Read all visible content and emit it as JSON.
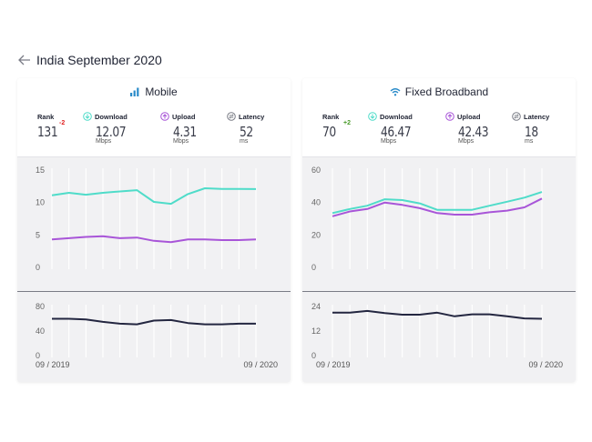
{
  "header": {
    "title": "India September 2020"
  },
  "colors": {
    "download": "#4fdcc9",
    "upload": "#a855d8",
    "latency": "#232640",
    "rank_down": "#e02020",
    "rank_up": "#4a9b2a",
    "accent": "#2a8bc9"
  },
  "panels": [
    {
      "title": "Mobile",
      "icon": "signal-bars-icon",
      "rank": {
        "label": "Rank",
        "value": "131",
        "change": "-2"
      },
      "download": {
        "label": "Download",
        "value": "12.07",
        "unit": "Mbps"
      },
      "upload": {
        "label": "Upload",
        "value": "4.31",
        "unit": "Mbps"
      },
      "latency": {
        "label": "Latency",
        "value": "52",
        "unit": "ms"
      },
      "x_start": "09 / 2019",
      "x_end": "09 / 2020"
    },
    {
      "title": "Fixed Broadband",
      "icon": "wifi-icon",
      "rank": {
        "label": "Rank",
        "value": "70",
        "change": "+2"
      },
      "download": {
        "label": "Download",
        "value": "46.47",
        "unit": "Mbps"
      },
      "upload": {
        "label": "Upload",
        "value": "42.43",
        "unit": "Mbps"
      },
      "latency": {
        "label": "Latency",
        "value": "18",
        "unit": "ms"
      },
      "x_start": "09 / 2019",
      "x_end": "09 / 2020"
    }
  ],
  "chart_data": [
    {
      "type": "line",
      "x": [
        "09/2019",
        "10/2019",
        "11/2019",
        "12/2019",
        "01/2020",
        "02/2020",
        "03/2020",
        "04/2020",
        "05/2020",
        "06/2020",
        "07/2020",
        "08/2020",
        "09/2020"
      ],
      "ylim": [
        0,
        15
      ],
      "yticks": [
        "15",
        "10",
        "5",
        "0"
      ],
      "series": [
        {
          "name": "Download",
          "values": [
            11.1,
            11.5,
            11.2,
            11.5,
            11.7,
            11.9,
            10.1,
            9.8,
            11.3,
            12.2,
            12.1,
            12.1,
            12.07
          ]
        },
        {
          "name": "Upload",
          "values": [
            4.3,
            4.5,
            4.7,
            4.8,
            4.5,
            4.6,
            4.1,
            3.9,
            4.3,
            4.3,
            4.2,
            4.2,
            4.31
          ]
        }
      ]
    },
    {
      "type": "line",
      "x": [
        "09/2019",
        "10/2019",
        "11/2019",
        "12/2019",
        "01/2020",
        "02/2020",
        "03/2020",
        "04/2020",
        "05/2020",
        "06/2020",
        "07/2020",
        "08/2020",
        "09/2020"
      ],
      "ylim": [
        0,
        80
      ],
      "yticks": [
        "80",
        "40",
        "0"
      ],
      "series": [
        {
          "name": "Latency",
          "values": [
            60,
            60,
            59,
            55,
            52,
            51,
            57,
            58,
            53,
            51,
            51,
            52,
            52
          ]
        }
      ]
    },
    {
      "type": "line",
      "x": [
        "09/2019",
        "10/2019",
        "11/2019",
        "12/2019",
        "01/2020",
        "02/2020",
        "03/2020",
        "04/2020",
        "05/2020",
        "06/2020",
        "07/2020",
        "08/2020",
        "09/2020"
      ],
      "ylim": [
        0,
        60
      ],
      "yticks": [
        "60",
        "40",
        "20",
        "0"
      ],
      "series": [
        {
          "name": "Download",
          "values": [
            33.5,
            36,
            38,
            42,
            41.5,
            39.5,
            35.5,
            35.5,
            35.5,
            38,
            40.5,
            43,
            46.47
          ]
        },
        {
          "name": "Upload",
          "values": [
            31.5,
            34.5,
            36,
            40,
            38.5,
            36.5,
            33.5,
            32.5,
            32.5,
            34,
            35,
            37,
            42.43
          ]
        }
      ]
    },
    {
      "type": "line",
      "x": [
        "09/2019",
        "10/2019",
        "11/2019",
        "12/2019",
        "01/2020",
        "02/2020",
        "03/2020",
        "04/2020",
        "05/2020",
        "06/2020",
        "07/2020",
        "08/2020",
        "09/2020"
      ],
      "ylim": [
        0,
        24
      ],
      "yticks": [
        "24",
        "12",
        "0"
      ],
      "series": [
        {
          "name": "Latency",
          "values": [
            21,
            21,
            21.8,
            20.8,
            20,
            20,
            21,
            19.2,
            20.2,
            20.2,
            19.2,
            18.2,
            18
          ]
        }
      ]
    }
  ]
}
